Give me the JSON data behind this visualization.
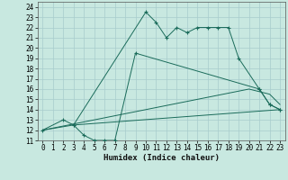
{
  "xlabel": "Humidex (Indice chaleur)",
  "bg_color": "#c8e8e0",
  "grid_color": "#a8cccc",
  "line_color": "#1a6b5a",
  "xlim": [
    -0.5,
    23.5
  ],
  "ylim": [
    11,
    24.5
  ],
  "xticks": [
    0,
    1,
    2,
    3,
    4,
    5,
    6,
    7,
    8,
    9,
    10,
    11,
    12,
    13,
    14,
    15,
    16,
    17,
    18,
    19,
    20,
    21,
    22,
    23
  ],
  "yticks": [
    11,
    12,
    13,
    14,
    15,
    16,
    17,
    18,
    19,
    20,
    21,
    22,
    23,
    24
  ],
  "line1_x": [
    0,
    2,
    3,
    10,
    11,
    12,
    13,
    14,
    15,
    16,
    17,
    18,
    19,
    21,
    22,
    23
  ],
  "line1_y": [
    12,
    13,
    12.5,
    23.5,
    22.5,
    21,
    22,
    21.5,
    22,
    22,
    22,
    22,
    19,
    16,
    14.5,
    14
  ],
  "line2_x": [
    3,
    4,
    5,
    6,
    7,
    9,
    21,
    22,
    23
  ],
  "line2_y": [
    12.5,
    11.5,
    11,
    11,
    11,
    19.5,
    16,
    14.5,
    14
  ],
  "line3_x": [
    0,
    3,
    23
  ],
  "line3_y": [
    12,
    12.5,
    14
  ],
  "line4_x": [
    0,
    20,
    22,
    23
  ],
  "line4_y": [
    12,
    16,
    15.5,
    14.5
  ],
  "lw": 0.7,
  "ms": 3.0,
  "mew": 0.8,
  "tick_fontsize": 5.5,
  "label_fontsize": 6.5
}
